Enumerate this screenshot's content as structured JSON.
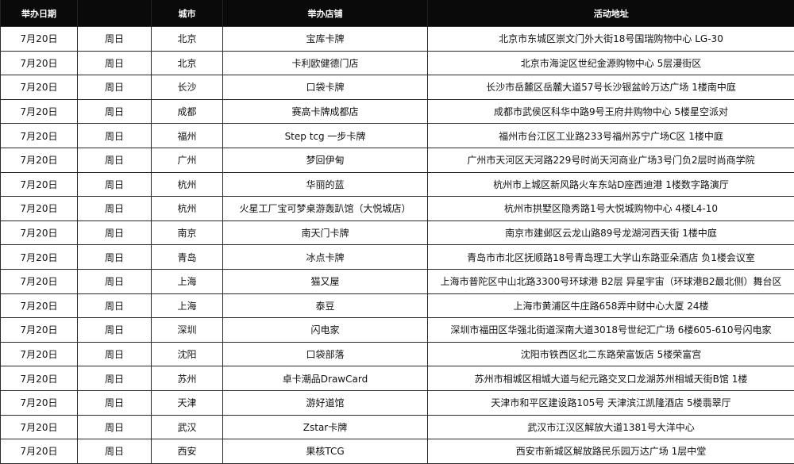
{
  "headers": [
    "举办日期",
    "",
    "城市",
    "举办店铺",
    "活动地址"
  ],
  "rows": [
    [
      "7月20日",
      "周日",
      "北京",
      "宝库卡牌",
      "北京市东城区崇文门外大街18号国瑞购物中心 LG-30"
    ],
    [
      "7月20日",
      "周日",
      "北京",
      "卡利欧健德门店",
      "北京市海淀区世纪金源购物中心 5层漫街区"
    ],
    [
      "7月20日",
      "周日",
      "长沙",
      "口袋卡牌",
      "长沙市岳麓区岳麓大道57号长沙银盆岭万达广场 1楼南中庭"
    ],
    [
      "7月20日",
      "周日",
      "成都",
      "赛高卡牌成都店",
      "成都市武侯区科华中路9号王府井购物中心 5楼星空派对"
    ],
    [
      "7月20日",
      "周日",
      "福州",
      "Step tcg 一步卡牌",
      "福州市台江区工业路233号福州苏宁广场C区 1楼中庭"
    ],
    [
      "7月20日",
      "周日",
      "广州",
      "梦回伊甸",
      "广州市天河区天河路229号时尚天河商业广场3号门负2层时尚商学院"
    ],
    [
      "7月20日",
      "周日",
      "杭州",
      "华丽的蓝",
      "杭州市上城区新风路火车东站D座西迪港 1楼数字路演厅"
    ],
    [
      "7月20日",
      "周日",
      "杭州",
      "火星工厂宝可梦桌游轰趴馆（大悦城店）",
      "杭州市拱墅区隐秀路1号大悦城购物中心 4楼L4-10"
    ],
    [
      "7月20日",
      "周日",
      "南京",
      "南天门卡牌",
      "南京市建邺区云龙山路89号龙湖河西天街 1楼中庭"
    ],
    [
      "7月20日",
      "周日",
      "青岛",
      "冰点卡牌",
      "青岛市市北区抚顺路18号青岛理工大学山东路亚朵酒店 负1楼会议室"
    ],
    [
      "7月20日",
      "周日",
      "上海",
      "猫又屋",
      "上海市普陀区中山北路3300号环球港 B2层 异星宇宙（环球港B2最北侧）舞台区"
    ],
    [
      "7月20日",
      "周日",
      "上海",
      "泰豆",
      "上海市黄浦区牛庄路658弄中财中心大厦 24楼"
    ],
    [
      "7月20日",
      "周日",
      "深圳",
      "闪电家",
      "深圳市福田区华强北街道深南大道3018号世纪汇广场 6楼605-610号闪电家"
    ],
    [
      "7月20日",
      "周日",
      "沈阳",
      "口袋部落",
      "沈阳市铁西区北二东路荣富饭店 5楼荣富宫"
    ],
    [
      "7月20日",
      "周日",
      "苏州",
      "卓卡潮品DrawCard",
      "苏州市相城区相城大道与纪元路交叉口龙湖苏州相城天街B馆 1楼"
    ],
    [
      "7月20日",
      "周日",
      "天津",
      "游好道馆",
      "天津市和平区建设路105号 天津滨江凯隆酒店 5楼翡翠厅"
    ],
    [
      "7月20日",
      "周日",
      "武汉",
      "Zstar卡牌",
      "武汉市江汉区解放大道1381号大洋中心"
    ],
    [
      "7月20日",
      "周日",
      "西安",
      "果核TCG",
      "西安市新城区解放路民乐园万达广场 1层中堂"
    ]
  ]
}
